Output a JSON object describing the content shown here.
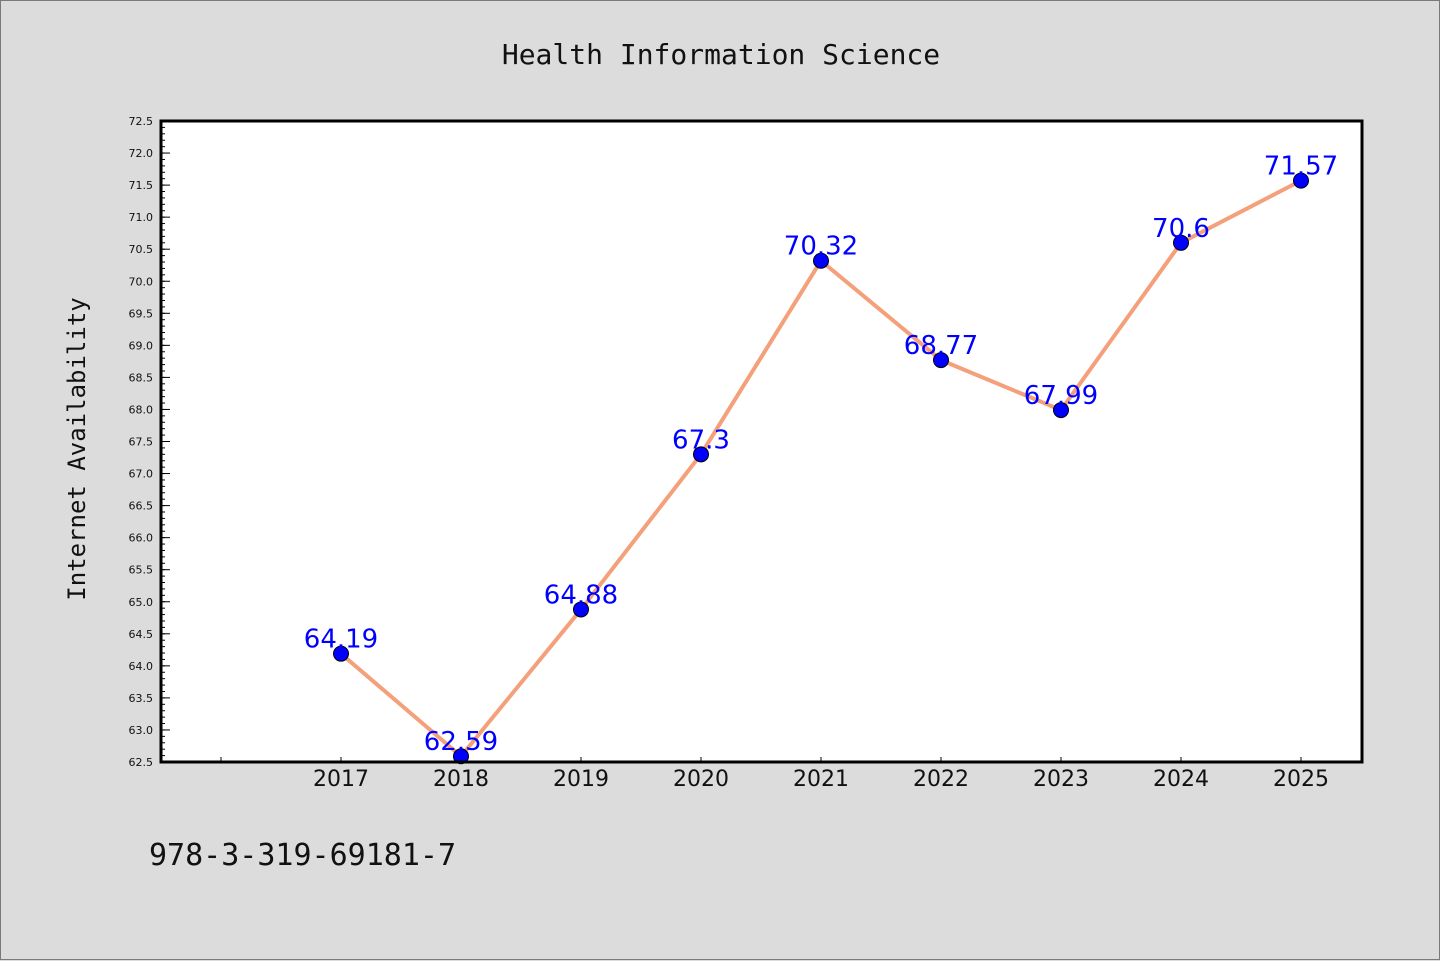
{
  "chart_data": {
    "type": "line",
    "title": "Health Information Science",
    "xlabel": "",
    "ylabel": "Internet Availability",
    "categories": [
      "2017",
      "2018",
      "2019",
      "2020",
      "2021",
      "2022",
      "2023",
      "2024",
      "2025"
    ],
    "series": [
      {
        "values": [
          64.19,
          62.59,
          64.88,
          67.3,
          70.32,
          68.77,
          67.99,
          70.6,
          71.57
        ],
        "data_labels": [
          "64.19",
          "62.59",
          "64.88",
          "67.3",
          "70.32",
          "68.77",
          "67.99",
          "70.6",
          "71.57"
        ],
        "line_color": "#f4a07a",
        "marker_color": "#0000ff"
      }
    ],
    "ylim": [
      62.5,
      72.5
    ],
    "yticks": [
      "62.5",
      "63.0",
      "63.5",
      "64.0",
      "64.5",
      "65.0",
      "65.5",
      "66.0",
      "66.5",
      "67.0",
      "67.5",
      "68.0",
      "68.5",
      "69.0",
      "69.5",
      "70.0",
      "70.5",
      "71.0",
      "71.5",
      "72.0",
      "72.5"
    ],
    "grid": false,
    "data_label_color": "#0000ff",
    "annotation": "978-3-319-69181-7"
  }
}
